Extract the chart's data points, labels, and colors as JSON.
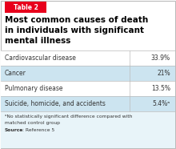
{
  "table_label": "Table 2",
  "title_lines": [
    "Most common causes of death",
    "in individuals with significant",
    "mental illness"
  ],
  "rows": [
    {
      "cause": "Cardiovascular disease",
      "value": "33.9%"
    },
    {
      "cause": "Cancer",
      "value": "21%"
    },
    {
      "cause": "Pulmonary disease",
      "value": "13.5%"
    },
    {
      "cause": "Suicide, homicide, and accidents",
      "value": "5.4%ᵃ"
    }
  ],
  "footnote_line1": "ᵃNo statistically significant difference compared with",
  "footnote_line2": "matched control group",
  "source_bold": "Source",
  "source_rest": ": Reference 5",
  "bg_color": "#ffffff",
  "row_alt_color": "#cce4f0",
  "row_base_color": "#ffffff",
  "footnote_bg": "#e8f4f9",
  "border_color": "#bbbbbb",
  "title_color": "#000000",
  "label_bg": "#e8001c",
  "label_text_color": "#ffffff",
  "text_color": "#333333",
  "divider_color": "#bbbbbb"
}
